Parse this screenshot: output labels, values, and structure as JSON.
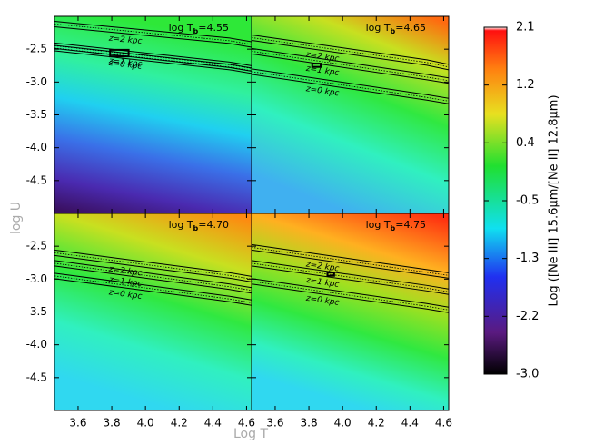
{
  "figure": {
    "xlabel": "Log T",
    "ylabel": "log U"
  },
  "chart_data": [
    {
      "type": "contour",
      "title_main": "log T",
      "title_sub": "b",
      "title_rest": "=4.55",
      "xlim": [
        3.46,
        4.63
      ],
      "ylim": [
        -5,
        -2
      ],
      "xticks": [
        3.6,
        3.8,
        {
          "value": 4,
          "label": "4.0"
        },
        4.2,
        4.4,
        4.6
      ],
      "yticks": [
        -4.5,
        {
          "value": -4,
          "label": "-4.0"
        },
        -3.5,
        {
          "value": -3,
          "label": "-3.0"
        },
        -2.5
      ],
      "show_xlabels": false,
      "show_ylabels": true,
      "series": [
        {
          "name": "z=2 kpc",
          "x": [
            3.46,
            4.5,
            4.63
          ],
          "values": [
            -2.117,
            -2.372,
            -2.428
          ]
        },
        {
          "name": "z=1 kpc",
          "x": [
            3.46,
            4.5,
            4.63
          ],
          "values": [
            -2.448,
            -2.738,
            -2.793
          ]
        },
        {
          "name": "z=0 kpc",
          "x": [
            3.46,
            4.5,
            4.63
          ],
          "values": [
            -2.483,
            -2.772,
            -2.828
          ]
        }
      ],
      "box": {
        "x": [
          3.79,
          3.9
        ],
        "y": [
          -2.51,
          -2.61
        ]
      }
    },
    {
      "type": "contour",
      "title_main": "log T",
      "title_sub": "b",
      "title_rest": "=4.65",
      "xlim": [
        3.46,
        4.63
      ],
      "ylim": [
        -5,
        -2
      ],
      "xticks": [
        3.6,
        3.8,
        {
          "value": 4,
          "label": "4.0"
        },
        4.2,
        4.4,
        4.6
      ],
      "yticks": [
        -4.5,
        {
          "value": -4,
          "label": "-4.0"
        },
        -3.5,
        {
          "value": -3,
          "label": "-3.0"
        },
        -2.5
      ],
      "show_xlabels": false,
      "show_ylabels": false,
      "series": [
        {
          "name": "z=2 kpc",
          "x": [
            3.46,
            4.5,
            4.63
          ],
          "values": [
            -2.324,
            -2.703,
            -2.772
          ]
        },
        {
          "name": "z=1 kpc",
          "x": [
            3.46,
            4.5,
            4.63
          ],
          "values": [
            -2.531,
            -2.924,
            -2.979
          ]
        },
        {
          "name": "z=0 kpc",
          "x": [
            3.46,
            4.5,
            4.63
          ],
          "values": [
            -2.841,
            -3.234,
            -3.29
          ]
        }
      ],
      "box": {
        "x": [
          3.82,
          3.87
        ],
        "y": [
          -2.72,
          -2.77
        ]
      }
    },
    {
      "type": "contour",
      "title_main": "log T",
      "title_sub": "b",
      "title_rest": "=4.70",
      "xlim": [
        3.46,
        4.63
      ],
      "ylim": [
        -5,
        -2
      ],
      "xticks": [
        3.6,
        3.8,
        {
          "value": 4,
          "label": "4.0"
        },
        4.2,
        4.4,
        4.6
      ],
      "yticks": [
        -4.5,
        {
          "value": -4,
          "label": "-4.0"
        },
        -3.5,
        {
          "value": -3,
          "label": "-3.0"
        },
        -2.5
      ],
      "show_xlabels": true,
      "show_ylabels": true,
      "series": [
        {
          "name": "z=2 kpc",
          "x": [
            3.46,
            4.5,
            4.63
          ],
          "values": [
            -2.6,
            -2.945,
            -3.0
          ]
        },
        {
          "name": "z=1 kpc",
          "x": [
            3.46,
            4.5,
            4.63
          ],
          "values": [
            -2.759,
            -3.117,
            -3.172
          ]
        },
        {
          "name": "z=0 kpc",
          "x": [
            3.46,
            4.5,
            4.63
          ],
          "values": [
            -2.952,
            -3.303,
            -3.359
          ]
        }
      ]
    },
    {
      "type": "contour",
      "title_main": "log T",
      "title_sub": "b",
      "title_rest": "=4.75",
      "xlim": [
        3.46,
        4.63
      ],
      "ylim": [
        -5,
        -2
      ],
      "xticks": [
        3.6,
        3.8,
        {
          "value": 4,
          "label": "4.0"
        },
        4.2,
        4.4,
        4.6
      ],
      "yticks": [
        -4.5,
        {
          "value": -4,
          "label": "-4.0"
        },
        -3.5,
        {
          "value": -3,
          "label": "-3.0"
        },
        -2.5
      ],
      "show_xlabels": true,
      "show_ylabels": false,
      "series": [
        {
          "name": "z=2 kpc",
          "x": [
            3.46,
            4.5,
            4.63
          ],
          "values": [
            -2.517,
            -2.897,
            -2.945
          ]
        },
        {
          "name": "z=1 kpc",
          "x": [
            3.46,
            4.5,
            4.63
          ],
          "values": [
            -2.759,
            -3.138,
            -3.193
          ]
        },
        {
          "name": "z=0 kpc",
          "x": [
            3.46,
            4.5,
            4.63
          ],
          "values": [
            -3.034,
            -3.414,
            -3.469
          ]
        }
      ],
      "box": {
        "x": [
          3.91,
          3.95
        ],
        "y": [
          -2.9,
          -2.95
        ]
      }
    },
    {
      "type": "colorbar",
      "label": "Log ([Ne III] 15.6μm/[Ne II] 12.8μm)",
      "lim": [
        -3,
        2.1
      ],
      "ticks": [
        2.1,
        {
          "value": 1.25,
          "label": "1.2"
        },
        0.4,
        {
          "value": -0.45,
          "label": "-0.5"
        },
        -1.3,
        {
          "value": -2.15,
          "label": "-2.2"
        },
        {
          "value": -3,
          "label": "-3.0"
        }
      ]
    }
  ]
}
